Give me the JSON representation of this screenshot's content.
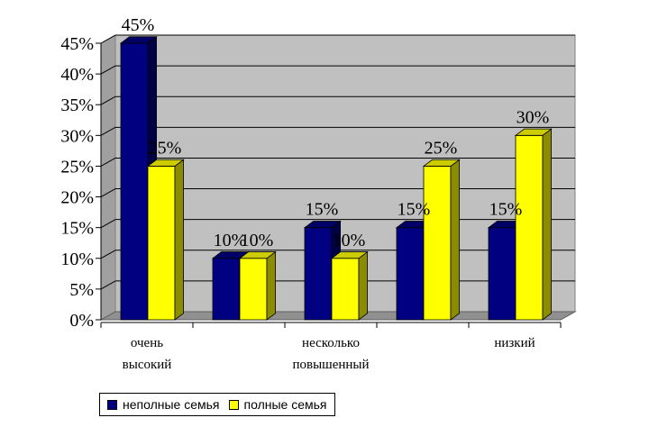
{
  "chart_data": {
    "type": "bar",
    "categories": [
      [
        "очень",
        "высокий"
      ],
      [],
      [
        "несколько",
        "повышенный"
      ],
      [],
      [
        "низкий"
      ]
    ],
    "series": [
      {
        "name": "неполные семья",
        "values": [
          45,
          10,
          15,
          15,
          15
        ],
        "color": "#000080",
        "labels": [
          "45%",
          "10%",
          "15%",
          "15%",
          "15%"
        ]
      },
      {
        "name": "полные семья",
        "values": [
          25,
          10,
          10,
          25,
          30
        ],
        "color": "#ffff00",
        "labels": [
          "25%",
          "10%",
          "10%",
          "25%",
          "30%"
        ]
      }
    ],
    "y_ticks": [
      "0%",
      "5%",
      "10%",
      "15%",
      "20%",
      "25%",
      "30%",
      "35%",
      "40%",
      "45%"
    ],
    "ylim": [
      0,
      45
    ],
    "grid": true,
    "style": "3d-clustered-column",
    "plot_wall_color": "#c0c0c0",
    "legend_position": "bottom-left"
  }
}
